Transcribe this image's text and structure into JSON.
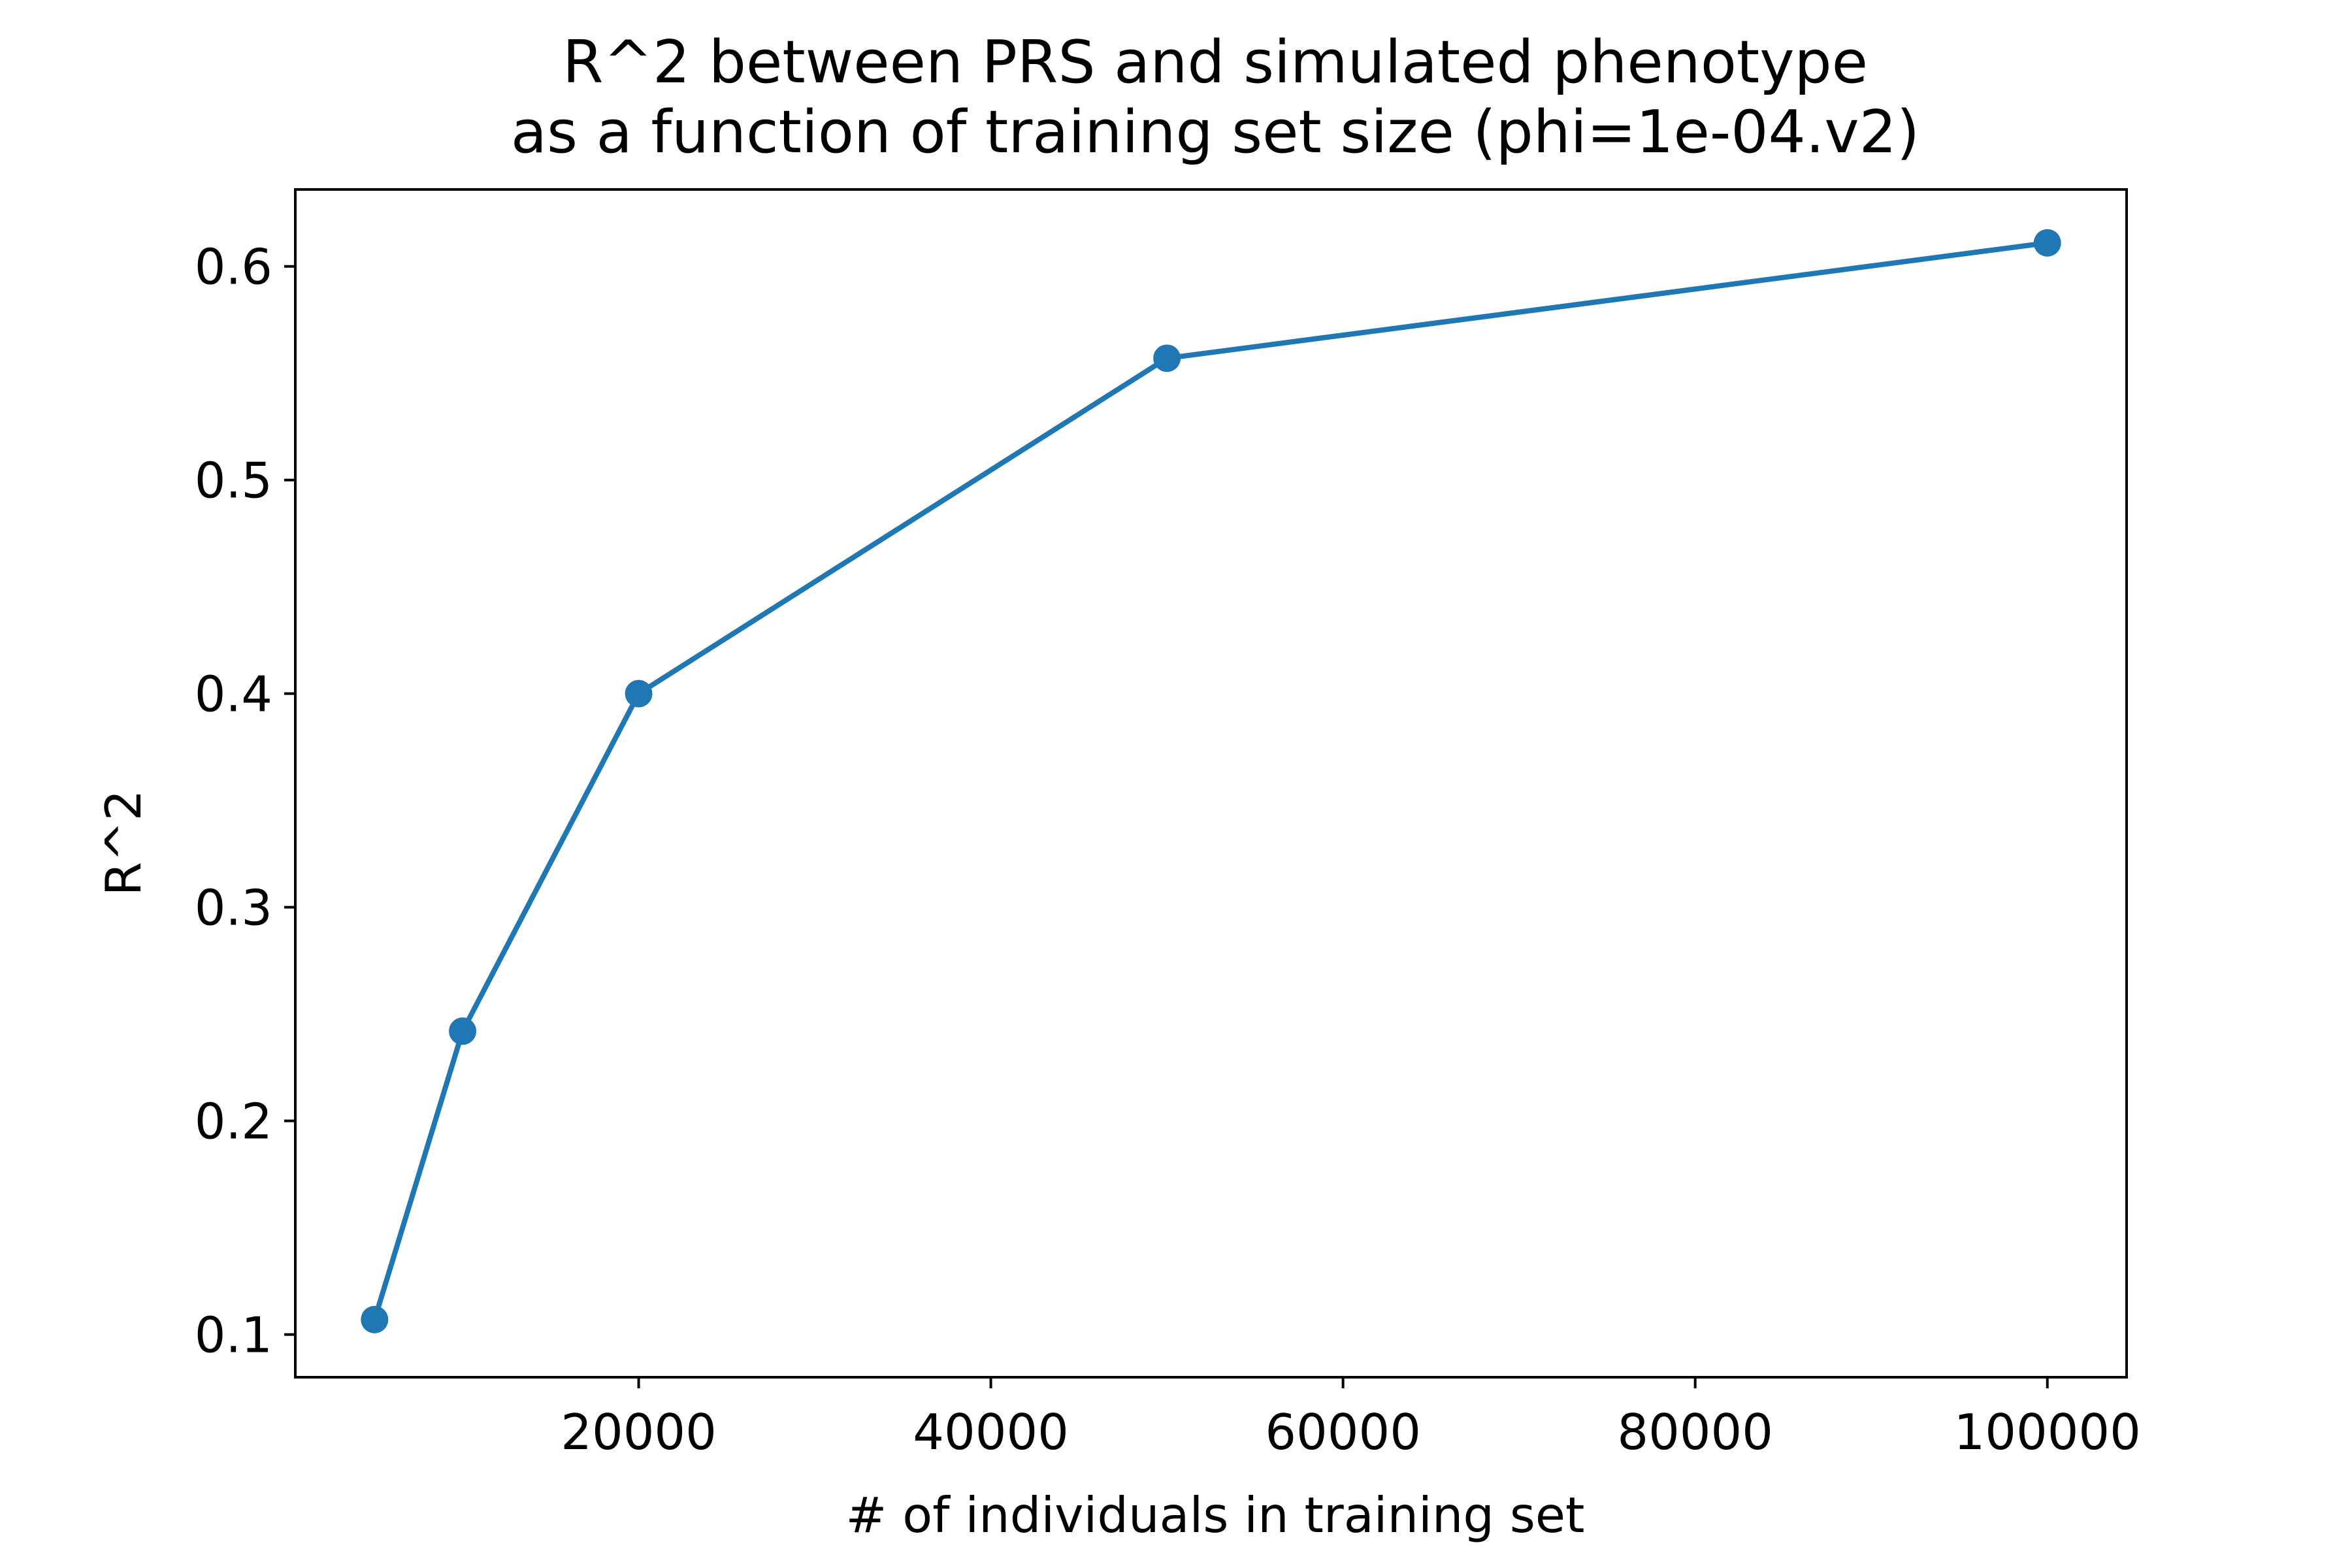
{
  "chart_data": {
    "type": "line",
    "title": [
      "R^2 between PRS and simulated phenotype",
      "as a function of training set size (phi=1e-04.v2)"
    ],
    "xlabel": "# of individuals in training set",
    "ylabel": "R^2",
    "xlim": [
      500,
      104500
    ],
    "ylim": [
      0.08,
      0.636
    ],
    "xticks": [
      20000,
      40000,
      60000,
      80000,
      100000
    ],
    "yticks": [
      0.1,
      0.2,
      0.3,
      0.4,
      0.5,
      0.6
    ],
    "grid": false,
    "color": "#1f77b4",
    "series": [
      {
        "x": [
          5000,
          10000,
          20000,
          50000,
          100000
        ],
        "y": [
          0.107,
          0.242,
          0.4,
          0.557,
          0.611
        ]
      }
    ]
  }
}
